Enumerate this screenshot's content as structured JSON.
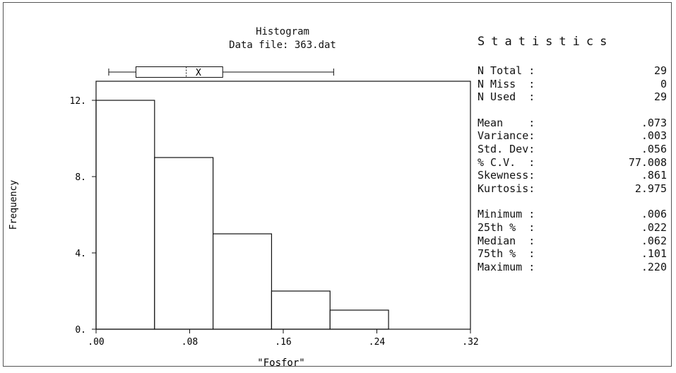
{
  "title": "Histogram",
  "subtitle": "Data file: 363.dat",
  "statistics_heading": "Statistics",
  "statistics": [
    {
      "label": "N Total :",
      "value": "29"
    },
    {
      "label": "N Miss  :",
      "value": "0"
    },
    {
      "label": "N Used  :",
      "value": "29"
    },
    {
      "label": "Mean    :",
      "value": ".073"
    },
    {
      "label": "Variance:",
      "value": ".003"
    },
    {
      "label": "Std. Dev:",
      "value": ".056"
    },
    {
      "label": "% C.V.  :",
      "value": "77.008"
    },
    {
      "label": "Skewness:",
      "value": ".861"
    },
    {
      "label": "Kurtosis:",
      "value": "2.975"
    },
    {
      "label": "Minimum :",
      "value": ".006"
    },
    {
      "label": "25th %  :",
      "value": ".022"
    },
    {
      "label": "Median  :",
      "value": ".062"
    },
    {
      "label": "75th %  :",
      "value": ".101"
    },
    {
      "label": "Maximum :",
      "value": ".220"
    }
  ],
  "chart_data": {
    "type": "bar",
    "title": "Histogram",
    "subtitle": "Data file: 363.dat",
    "xlabel": "\"Fosfor\"",
    "ylabel": "Frequency",
    "bins": [
      {
        "from": 0.0,
        "to": 0.05,
        "count": 12
      },
      {
        "from": 0.05,
        "to": 0.1,
        "count": 9
      },
      {
        "from": 0.1,
        "to": 0.15,
        "count": 5
      },
      {
        "from": 0.15,
        "to": 0.2,
        "count": 2
      },
      {
        "from": 0.2,
        "to": 0.25,
        "count": 1
      }
    ],
    "xlim": [
      0,
      0.32
    ],
    "ylim": [
      0,
      13
    ],
    "xticks": [
      {
        "value": 0,
        "label": ".00"
      },
      {
        "value": 0.08,
        "label": ".08"
      },
      {
        "value": 0.16,
        "label": ".16"
      },
      {
        "value": 0.24,
        "label": ".24"
      },
      {
        "value": 0.32,
        "label": ".32"
      }
    ],
    "yticks": [
      {
        "value": 0,
        "label": "0."
      },
      {
        "value": 4,
        "label": "4."
      },
      {
        "value": 8,
        "label": "8."
      },
      {
        "value": 12,
        "label": "12."
      }
    ],
    "boxplot": {
      "min": 0.006,
      "q1": 0.022,
      "median": 0.062,
      "mean": 0.073,
      "q3": 0.101,
      "max": 0.22,
      "mean_marker": "X"
    },
    "grid": false
  }
}
